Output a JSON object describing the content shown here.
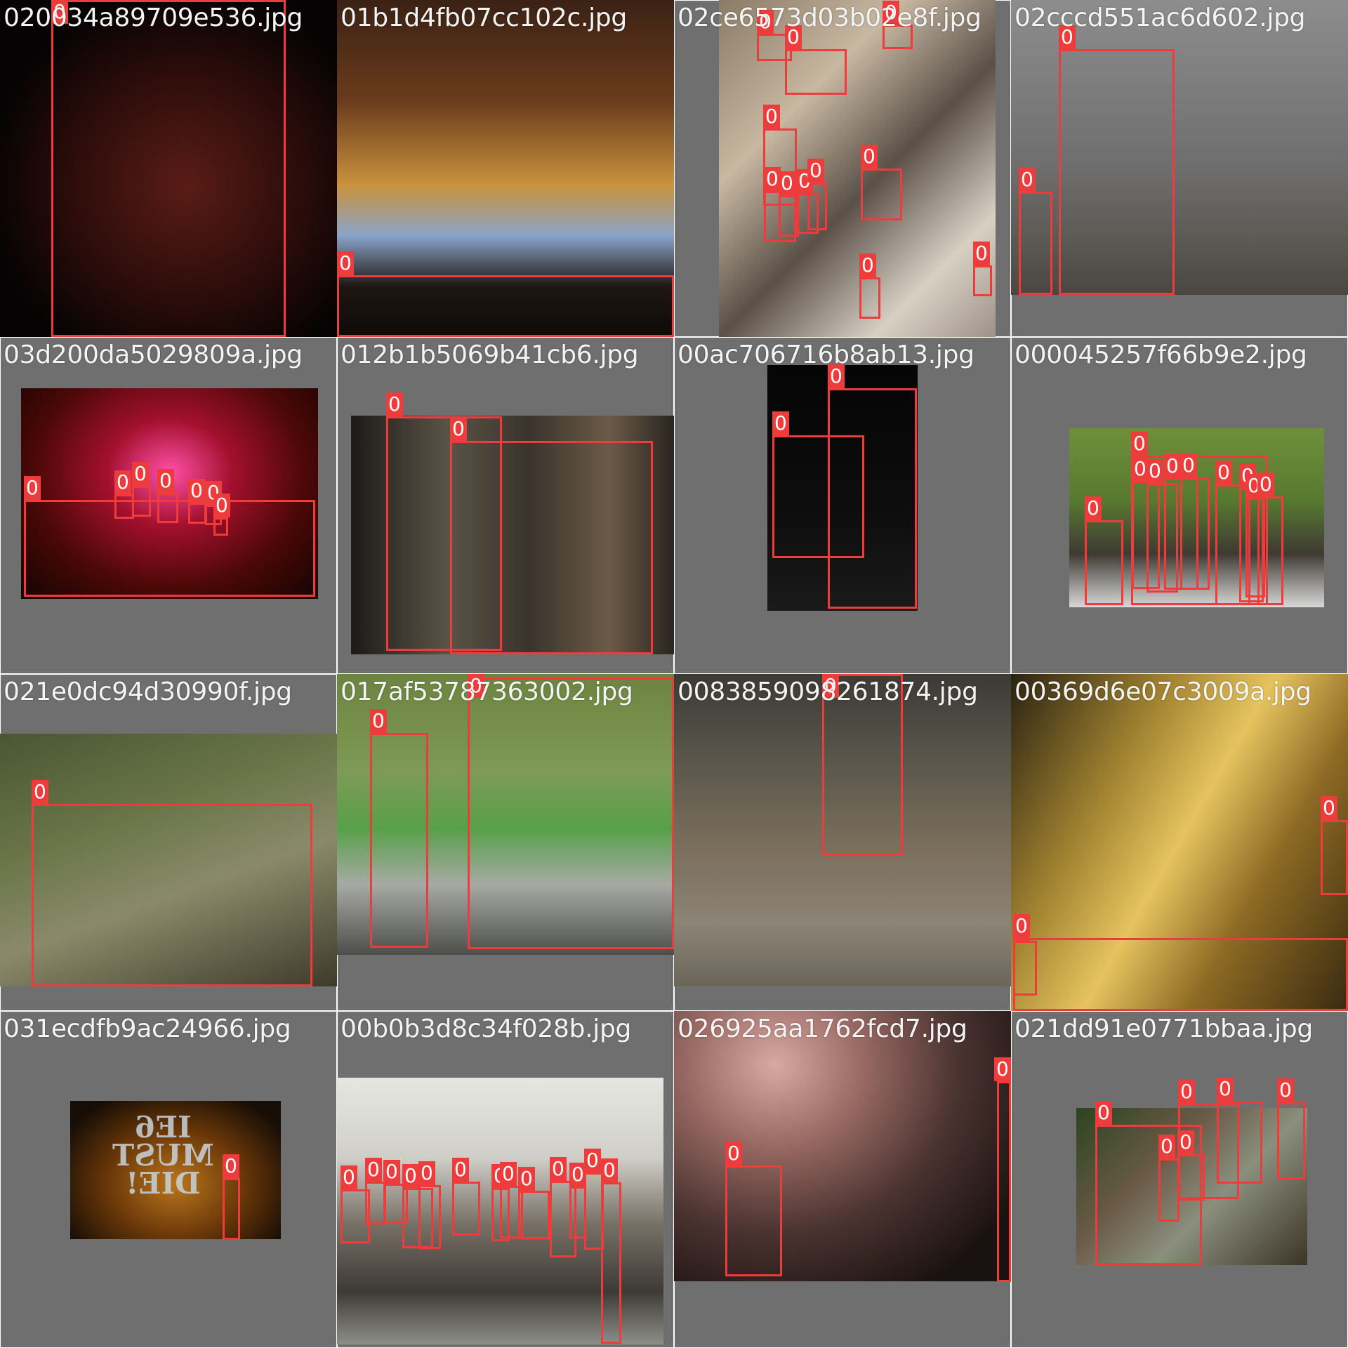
{
  "grid": {
    "tiles": [
      {
        "filename": "020034a89709e536.jpg"
      },
      {
        "filename": "01b1d4fb07cc102c.jpg"
      },
      {
        "filename": "02ce6573d03b02e8f.jpg"
      },
      {
        "filename": "02cccd551ac6d602.jpg"
      },
      {
        "filename": "03d200da5029809a.jpg"
      },
      {
        "filename": "012b1b5069b41cb6.jpg"
      },
      {
        "filename": "00ac706716b8ab13.jpg"
      },
      {
        "filename": "000045257f66b9e2.jpg"
      },
      {
        "filename": "021e0dc94d30990f.jpg"
      },
      {
        "filename": "017af53787363002.jpg"
      },
      {
        "filename": "0083859098261874.jpg"
      },
      {
        "filename": "00369d6e07c3009a.jpg"
      },
      {
        "filename": "031ecdfb9ac24966.jpg"
      },
      {
        "filename": "00b0b3d8c34f028b.jpg"
      },
      {
        "filename": "026925aa1762fcd7.jpg"
      },
      {
        "filename": "021dd91e0771bbaa.jpg"
      }
    ]
  },
  "annotation": {
    "class_label": "0",
    "box_color": "#ee3b3b",
    "label_text_color": "#ffffff"
  },
  "sign_text": {
    "line1": "IE6",
    "line2": "MUST",
    "line3": "DIE!"
  }
}
